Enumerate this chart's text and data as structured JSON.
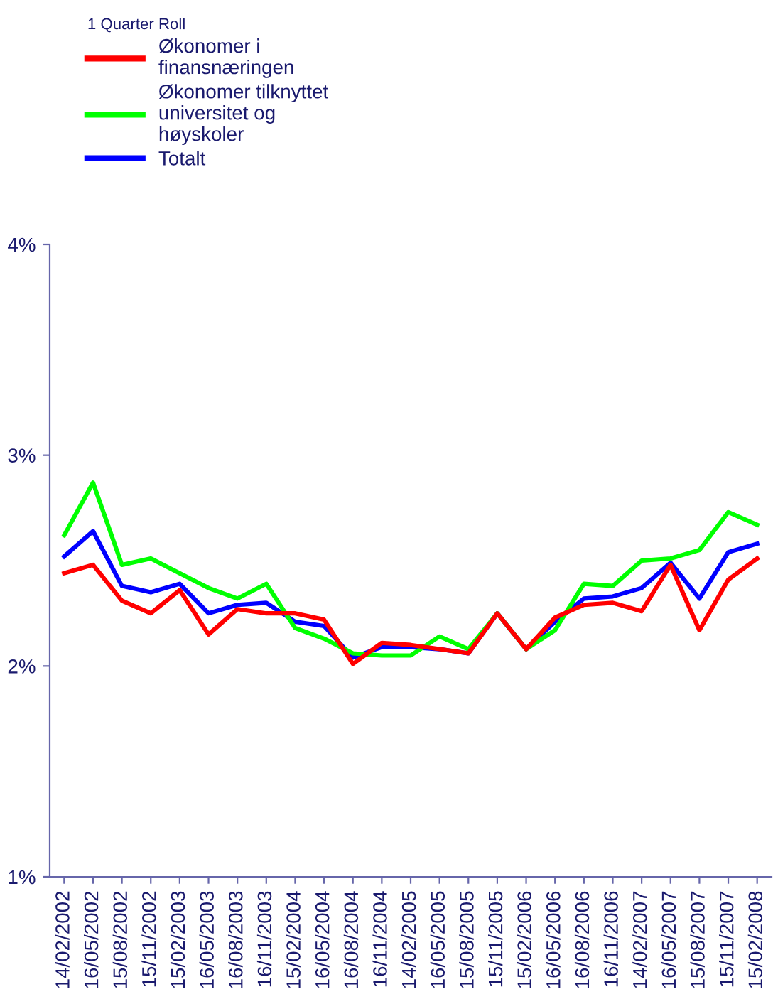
{
  "chart_data": {
    "type": "line",
    "categories": [
      "14/02/2002",
      "16/05/2002",
      "15/08/2002",
      "15/11/2002",
      "15/02/2003",
      "16/05/2003",
      "16/08/2003",
      "16/11/2003",
      "15/02/2004",
      "16/05/2004",
      "16/08/2004",
      "16/11/2004",
      "14/02/2005",
      "16/05/2005",
      "15/08/2005",
      "15/11/2005",
      "15/02/2006",
      "16/05/2006",
      "16/08/2006",
      "16/11/2006",
      "14/02/2007",
      "16/05/2007",
      "15/08/2007",
      "15/11/2007",
      "15/02/2008"
    ],
    "series": [
      {
        "name": "Økonomer i finansnæringen",
        "color": "#ff0000",
        "values": [
          2.44,
          2.48,
          2.31,
          2.25,
          2.36,
          2.15,
          2.27,
          2.25,
          2.25,
          2.22,
          2.01,
          2.11,
          2.1,
          2.08,
          2.06,
          2.25,
          2.08,
          2.23,
          2.29,
          2.3,
          2.26,
          2.48,
          2.17,
          2.41,
          2.51
        ]
      },
      {
        "name": "Økonomer tilknyttet universitet og høyskoler",
        "color": "#00ff00",
        "values": [
          2.62,
          2.87,
          2.48,
          2.51,
          2.44,
          2.37,
          2.32,
          2.39,
          2.18,
          2.13,
          2.06,
          2.05,
          2.05,
          2.14,
          2.08,
          2.25,
          2.08,
          2.17,
          2.39,
          2.38,
          2.5,
          2.51,
          2.55,
          2.73,
          2.67
        ]
      },
      {
        "name": "Totalt",
        "color": "#0000ff",
        "values": [
          2.52,
          2.64,
          2.38,
          2.35,
          2.39,
          2.25,
          2.29,
          2.3,
          2.21,
          2.19,
          2.04,
          2.09,
          2.09,
          2.08,
          2.06,
          2.25,
          2.08,
          2.21,
          2.32,
          2.33,
          2.37,
          2.49,
          2.32,
          2.54,
          2.58
        ]
      }
    ],
    "legend_title": "1 Quarter Roll",
    "legend": "top left",
    "ylim": [
      1,
      4
    ],
    "yticks": [
      {
        "value": 1,
        "label": "1%"
      },
      {
        "value": 2,
        "label": "2%"
      },
      {
        "value": 3,
        "label": "3%"
      },
      {
        "value": 4,
        "label": "4%"
      }
    ],
    "grid": false,
    "line_style": "solid"
  }
}
